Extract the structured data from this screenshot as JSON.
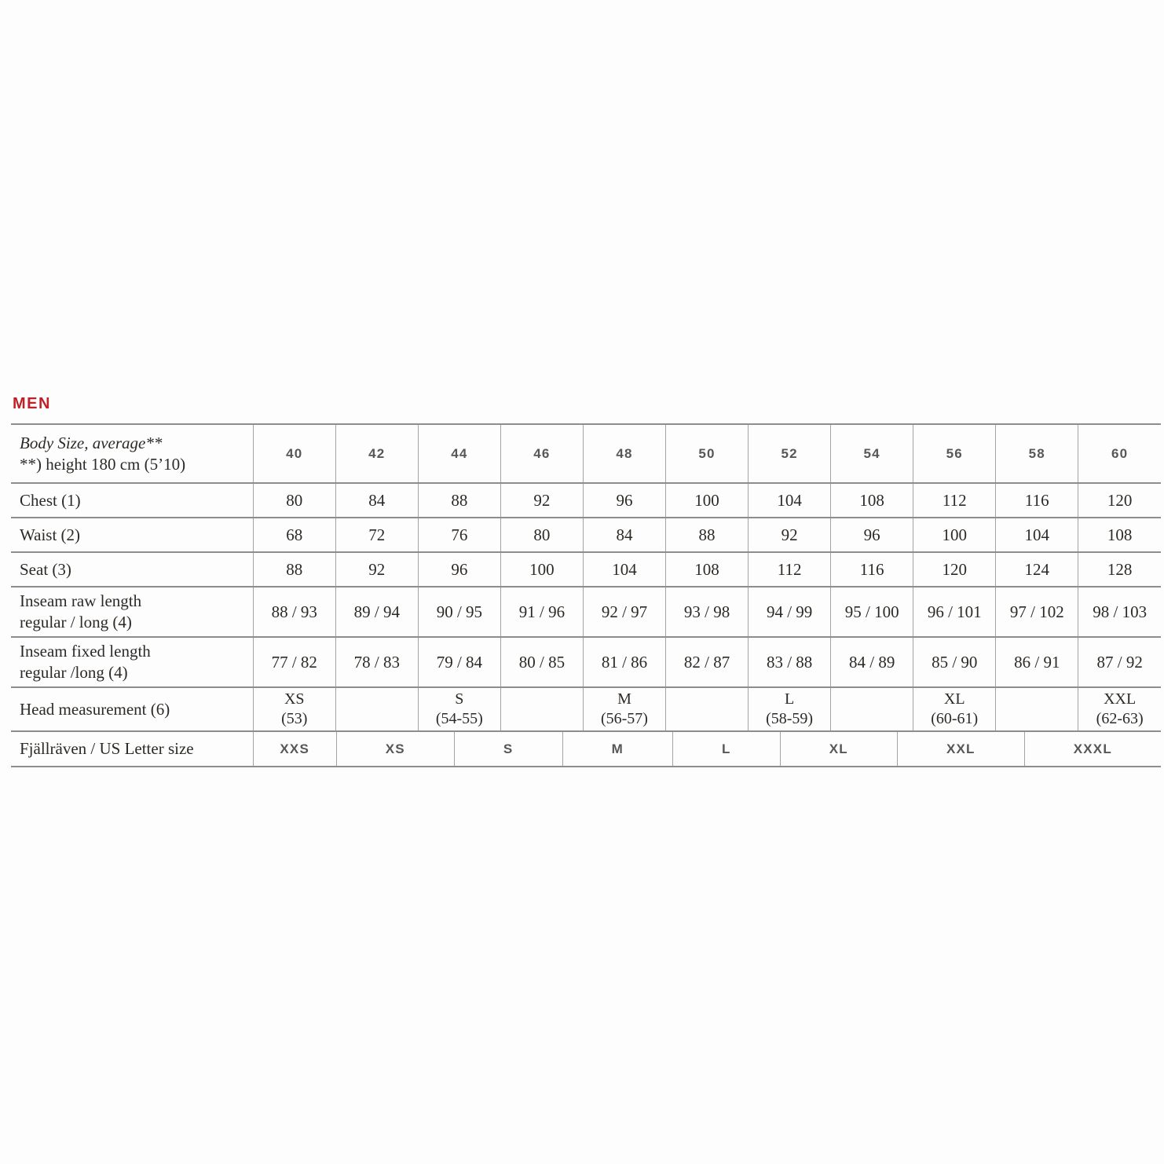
{
  "page_title": "MEN",
  "accent_color": "#bf2127",
  "table": {
    "header": {
      "label_line1": "Body Size, average**",
      "label_line2": "**) height 180 cm (5’10)",
      "sizes": [
        "40",
        "42",
        "44",
        "46",
        "48",
        "50",
        "52",
        "54",
        "56",
        "58",
        "60"
      ]
    },
    "rows": [
      {
        "label": "Chest (1)",
        "values": [
          "80",
          "84",
          "88",
          "92",
          "96",
          "100",
          "104",
          "108",
          "112",
          "116",
          "120"
        ]
      },
      {
        "label": "Waist (2)",
        "values": [
          "68",
          "72",
          "76",
          "80",
          "84",
          "88",
          "92",
          "96",
          "100",
          "104",
          "108"
        ]
      },
      {
        "label": "Seat (3)",
        "values": [
          "88",
          "92",
          "96",
          "100",
          "104",
          "108",
          "112",
          "116",
          "120",
          "124",
          "128"
        ]
      },
      {
        "label_line1": "Inseam raw length",
        "label_line2": "regular / long (4)",
        "values": [
          "88 / 93",
          "89 / 94",
          "90 / 95",
          "91 / 96",
          "92 / 97",
          "93 / 98",
          "94 / 99",
          "95 / 100",
          "96 / 101",
          "97 / 102",
          "98 / 103"
        ]
      },
      {
        "label_line1": "Inseam fixed length",
        "label_line2": "regular /long (4)",
        "values": [
          "77 / 82",
          "78 / 83",
          "79 / 84",
          "80 / 85",
          "81 / 86",
          "82 / 87",
          "83 / 88",
          "84 / 89",
          "85 / 90",
          "86 / 91",
          "87 / 92"
        ]
      }
    ],
    "head_row": {
      "label": "Head measurement (6)",
      "cells": [
        {
          "size": "XS",
          "range": "(53)"
        },
        {
          "size": "",
          "range": ""
        },
        {
          "size": "S",
          "range": "(54-55)"
        },
        {
          "size": "",
          "range": ""
        },
        {
          "size": "M",
          "range": "(56-57)"
        },
        {
          "size": "",
          "range": ""
        },
        {
          "size": "L",
          "range": "(58-59)"
        },
        {
          "size": "",
          "range": ""
        },
        {
          "size": "XL",
          "range": "(60-61)"
        },
        {
          "size": "",
          "range": ""
        },
        {
          "size": "XXL",
          "range": "(62-63)"
        }
      ]
    },
    "letter_row": {
      "label": "Fjällräven / US Letter size",
      "cells": [
        "XXS",
        "XS",
        "S",
        "M",
        "L",
        "XL",
        "XXL",
        "XXXL"
      ]
    }
  }
}
